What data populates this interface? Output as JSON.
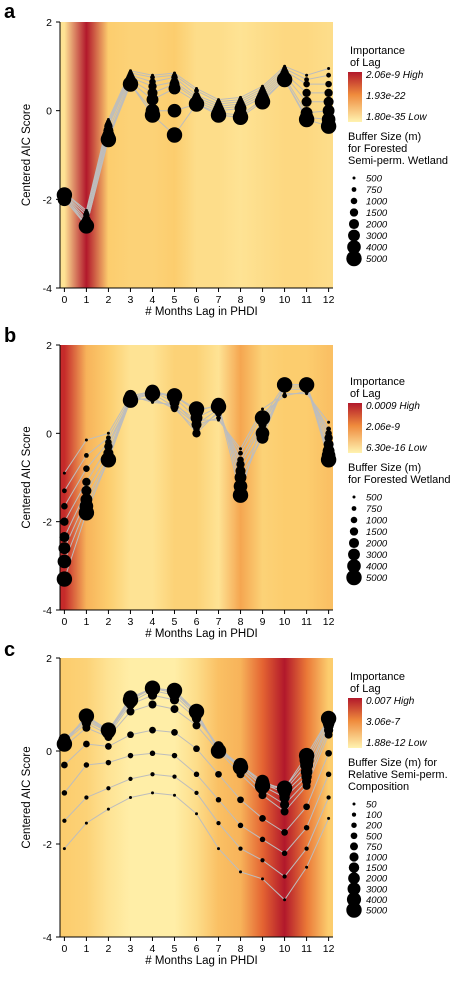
{
  "chart_data": [
    {
      "type": "line",
      "panel_label": "a",
      "xlabel": "# Months Lag in PHDI",
      "ylabel": "Centered AIC Score",
      "x": [
        0,
        1,
        2,
        3,
        4,
        5,
        6,
        7,
        8,
        9,
        10,
        11,
        12
      ],
      "xticks": [
        "0",
        "1",
        "2",
        "3",
        "4",
        "5",
        "6",
        "7",
        "8",
        "9",
        "10",
        "11",
        "12"
      ],
      "yticks": [
        "2",
        "0",
        "-2",
        "-4"
      ],
      "ylim": [
        -4,
        2
      ],
      "grid": false,
      "background": "heatmap of importance of lag per month",
      "importance_legend": {
        "title": "Importance of Lag",
        "labels": [
          "2.06e-9  High",
          "1.93e-22",
          "1.80e-35 Low"
        ]
      },
      "importance_level": [
        0.15,
        1.0,
        0.35,
        0.3,
        0.3,
        0.35,
        0.2,
        0.2,
        0.15,
        0.2,
        0.25,
        0.25,
        0.2
      ],
      "buffer_legend": {
        "title": "Buffer Size (m) for Forested Semi-perm. Wetland",
        "sizes": [
          "500",
          "750",
          "1000",
          "1500",
          "2000",
          "3000",
          "4000",
          "5000"
        ]
      },
      "series": [
        {
          "size": "500",
          "values": [
            -1.85,
            -2.25,
            -0.2,
            0.9,
            0.8,
            0.85,
            0.5,
            0.25,
            0.3,
            0.55,
            1.0,
            0.8,
            0.95
          ]
        },
        {
          "size": "750",
          "values": [
            -1.85,
            -2.3,
            -0.25,
            0.85,
            0.75,
            0.8,
            0.45,
            0.2,
            0.25,
            0.5,
            0.95,
            0.7,
            0.8
          ]
        },
        {
          "size": "1000",
          "values": [
            -1.9,
            -2.35,
            -0.3,
            0.8,
            0.65,
            0.75,
            0.35,
            0.15,
            0.2,
            0.45,
            0.9,
            0.6,
            0.6
          ]
        },
        {
          "size": "1500",
          "values": [
            -1.9,
            -2.45,
            -0.35,
            0.75,
            0.55,
            0.65,
            0.3,
            0.1,
            0.15,
            0.4,
            0.85,
            0.4,
            0.4
          ]
        },
        {
          "size": "2000",
          "values": [
            -1.95,
            -2.5,
            -0.45,
            0.7,
            0.4,
            0.6,
            0.25,
            0.05,
            0.1,
            0.35,
            0.8,
            0.2,
            0.2
          ]
        },
        {
          "size": "3000",
          "values": [
            -2.0,
            -2.55,
            -0.55,
            0.65,
            0.25,
            0.5,
            0.2,
            0.0,
            0.05,
            0.3,
            0.75,
            -0.05,
            0.0
          ]
        },
        {
          "size": "4000",
          "values": [
            -2.0,
            -2.6,
            -0.6,
            0.6,
            0.0,
            0.0,
            0.15,
            -0.05,
            -0.1,
            0.25,
            0.7,
            -0.15,
            -0.2
          ]
        },
        {
          "size": "5000",
          "values": [
            -1.9,
            -2.6,
            -0.65,
            0.6,
            -0.1,
            -0.55,
            0.15,
            -0.1,
            -0.15,
            0.2,
            0.7,
            -0.2,
            -0.35
          ]
        }
      ]
    },
    {
      "type": "line",
      "panel_label": "b",
      "xlabel": "# Months Lag in PHDI",
      "ylabel": "Centered AIC Score",
      "x": [
        0,
        1,
        2,
        3,
        4,
        5,
        6,
        7,
        8,
        9,
        10,
        11,
        12
      ],
      "xticks": [
        "0",
        "1",
        "2",
        "3",
        "4",
        "5",
        "6",
        "7",
        "8",
        "9",
        "10",
        "11",
        "12"
      ],
      "yticks": [
        "2",
        "0",
        "-2",
        "-4"
      ],
      "ylim": [
        -4,
        2
      ],
      "grid": false,
      "background": "heatmap of importance of lag per month",
      "importance_legend": {
        "title": "Importance of Lag",
        "labels": [
          "0.0009  High",
          "2.06e-9",
          "6.30e-16 Low"
        ]
      },
      "importance_level": [
        0.9,
        0.45,
        0.35,
        0.15,
        0.15,
        0.3,
        0.3,
        0.15,
        0.5,
        0.3,
        0.35,
        0.35,
        0.4
      ],
      "buffer_legend": {
        "title": "Buffer Size (m) for Forested Wetland",
        "sizes": [
          "500",
          "750",
          "1000",
          "1500",
          "2000",
          "3000",
          "4000",
          "5000"
        ]
      },
      "series": [
        {
          "size": "500",
          "values": [
            -0.9,
            -0.15,
            0.0,
            0.85,
            0.7,
            0.65,
            0.3,
            0.3,
            -0.35,
            0.55,
            0.9,
            0.9,
            0.25
          ]
        },
        {
          "size": "750",
          "values": [
            -1.3,
            -0.5,
            -0.1,
            0.8,
            0.75,
            0.6,
            0.2,
            0.35,
            -0.45,
            0.45,
            0.85,
            0.95,
            0.1
          ]
        },
        {
          "size": "1000",
          "values": [
            -1.65,
            -0.8,
            -0.2,
            0.75,
            0.8,
            0.55,
            0.1,
            0.45,
            -0.6,
            0.3,
            1.0,
            1.0,
            0.0
          ]
        },
        {
          "size": "1500",
          "values": [
            -2.0,
            -1.1,
            -0.3,
            0.8,
            0.9,
            0.6,
            0.0,
            0.5,
            -0.7,
            0.2,
            1.05,
            1.05,
            -0.1
          ]
        },
        {
          "size": "2000",
          "values": [
            -2.35,
            -1.3,
            -0.45,
            0.85,
            0.95,
            0.7,
            0.2,
            0.55,
            -0.85,
            0.05,
            1.1,
            1.1,
            -0.25
          ]
        },
        {
          "size": "3000",
          "values": [
            -2.6,
            -1.5,
            -0.55,
            0.85,
            0.95,
            0.8,
            0.35,
            0.6,
            -1.0,
            -0.1,
            1.1,
            1.1,
            -0.4
          ]
        },
        {
          "size": "4000",
          "values": [
            -2.9,
            -1.65,
            -0.6,
            0.8,
            0.95,
            0.85,
            0.5,
            0.65,
            -1.2,
            0.0,
            1.1,
            1.1,
            -0.5
          ]
        },
        {
          "size": "5000",
          "values": [
            -3.3,
            -1.8,
            -0.6,
            0.75,
            0.9,
            0.85,
            0.55,
            0.6,
            -1.4,
            0.35,
            1.1,
            1.1,
            -0.6
          ]
        }
      ]
    },
    {
      "type": "line",
      "panel_label": "c",
      "xlabel": "# Months Lag in PHDI",
      "ylabel": "Centered AIC Score",
      "x": [
        0,
        1,
        2,
        3,
        4,
        5,
        6,
        7,
        8,
        9,
        10,
        11,
        12
      ],
      "xticks": [
        "0",
        "1",
        "2",
        "3",
        "4",
        "5",
        "6",
        "7",
        "8",
        "9",
        "10",
        "11",
        "12"
      ],
      "yticks": [
        "2",
        "0",
        "-2",
        "-4"
      ],
      "ylim": [
        -4,
        2
      ],
      "grid": false,
      "background": "heatmap of importance of lag per month",
      "importance_legend": {
        "title": "Importance of Lag",
        "labels": [
          "0.007       High",
          "3.06e-7",
          "1.88e-12 Low"
        ]
      },
      "importance_level": [
        0.35,
        0.3,
        0.15,
        0.05,
        0.05,
        0.05,
        0.2,
        0.4,
        0.45,
        0.7,
        1.0,
        0.65,
        0.35
      ],
      "buffer_legend": {
        "title": "Buffer Size (m) for Relative Semi-perm. Composition",
        "sizes": [
          "50",
          "100",
          "200",
          "500",
          "750",
          "1000",
          "1500",
          "2000",
          "3000",
          "4000",
          "5000"
        ]
      },
      "series": [
        {
          "size": "50",
          "values": [
            -2.1,
            -1.55,
            -1.25,
            -1.0,
            -0.9,
            -0.95,
            -1.35,
            -2.1,
            -2.6,
            -2.75,
            -3.2,
            -2.5,
            -1.45
          ]
        },
        {
          "size": "100",
          "values": [
            -1.5,
            -1.0,
            -0.8,
            -0.6,
            -0.5,
            -0.55,
            -0.9,
            -1.55,
            -2.1,
            -2.35,
            -2.7,
            -2.1,
            -1.0
          ]
        },
        {
          "size": "200",
          "values": [
            -0.9,
            -0.3,
            -0.25,
            -0.1,
            -0.05,
            -0.1,
            -0.5,
            -1.05,
            -1.6,
            -1.9,
            -2.2,
            -1.65,
            -0.5
          ]
        },
        {
          "size": "500",
          "values": [
            -0.3,
            0.15,
            0.1,
            0.35,
            0.45,
            0.4,
            0.05,
            -0.5,
            -1.05,
            -1.45,
            -1.75,
            -1.2,
            -0.05
          ]
        },
        {
          "size": "750",
          "values": [
            0.1,
            0.5,
            0.3,
            0.85,
            1.0,
            0.9,
            0.55,
            0.0,
            -0.5,
            -0.95,
            -1.3,
            -0.75,
            0.35
          ]
        },
        {
          "size": "1000",
          "values": [
            0.2,
            0.6,
            0.35,
            1.0,
            1.2,
            1.1,
            0.7,
            0.1,
            -0.4,
            -0.85,
            -1.15,
            -0.65,
            0.45
          ]
        },
        {
          "size": "1500",
          "values": [
            0.25,
            0.65,
            0.4,
            1.05,
            1.3,
            1.2,
            0.75,
            0.1,
            -0.35,
            -0.75,
            -1.0,
            -0.55,
            0.55
          ]
        },
        {
          "size": "2000",
          "values": [
            0.25,
            0.7,
            0.4,
            1.1,
            1.35,
            1.25,
            0.8,
            0.05,
            -0.3,
            -0.7,
            -0.9,
            -0.45,
            0.6
          ]
        },
        {
          "size": "3000",
          "values": [
            0.2,
            0.75,
            0.4,
            1.15,
            1.35,
            1.25,
            0.85,
            0.0,
            -0.3,
            -0.65,
            -0.85,
            -0.3,
            0.65
          ]
        },
        {
          "size": "4000",
          "values": [
            0.15,
            0.75,
            0.45,
            1.15,
            1.35,
            1.3,
            0.85,
            0.0,
            -0.3,
            -0.7,
            -0.8,
            -0.2,
            0.7
          ]
        },
        {
          "size": "5000",
          "values": [
            0.15,
            0.75,
            0.45,
            1.1,
            1.35,
            1.3,
            0.85,
            0.0,
            -0.35,
            -0.75,
            -0.8,
            -0.1,
            0.7
          ]
        }
      ]
    }
  ]
}
